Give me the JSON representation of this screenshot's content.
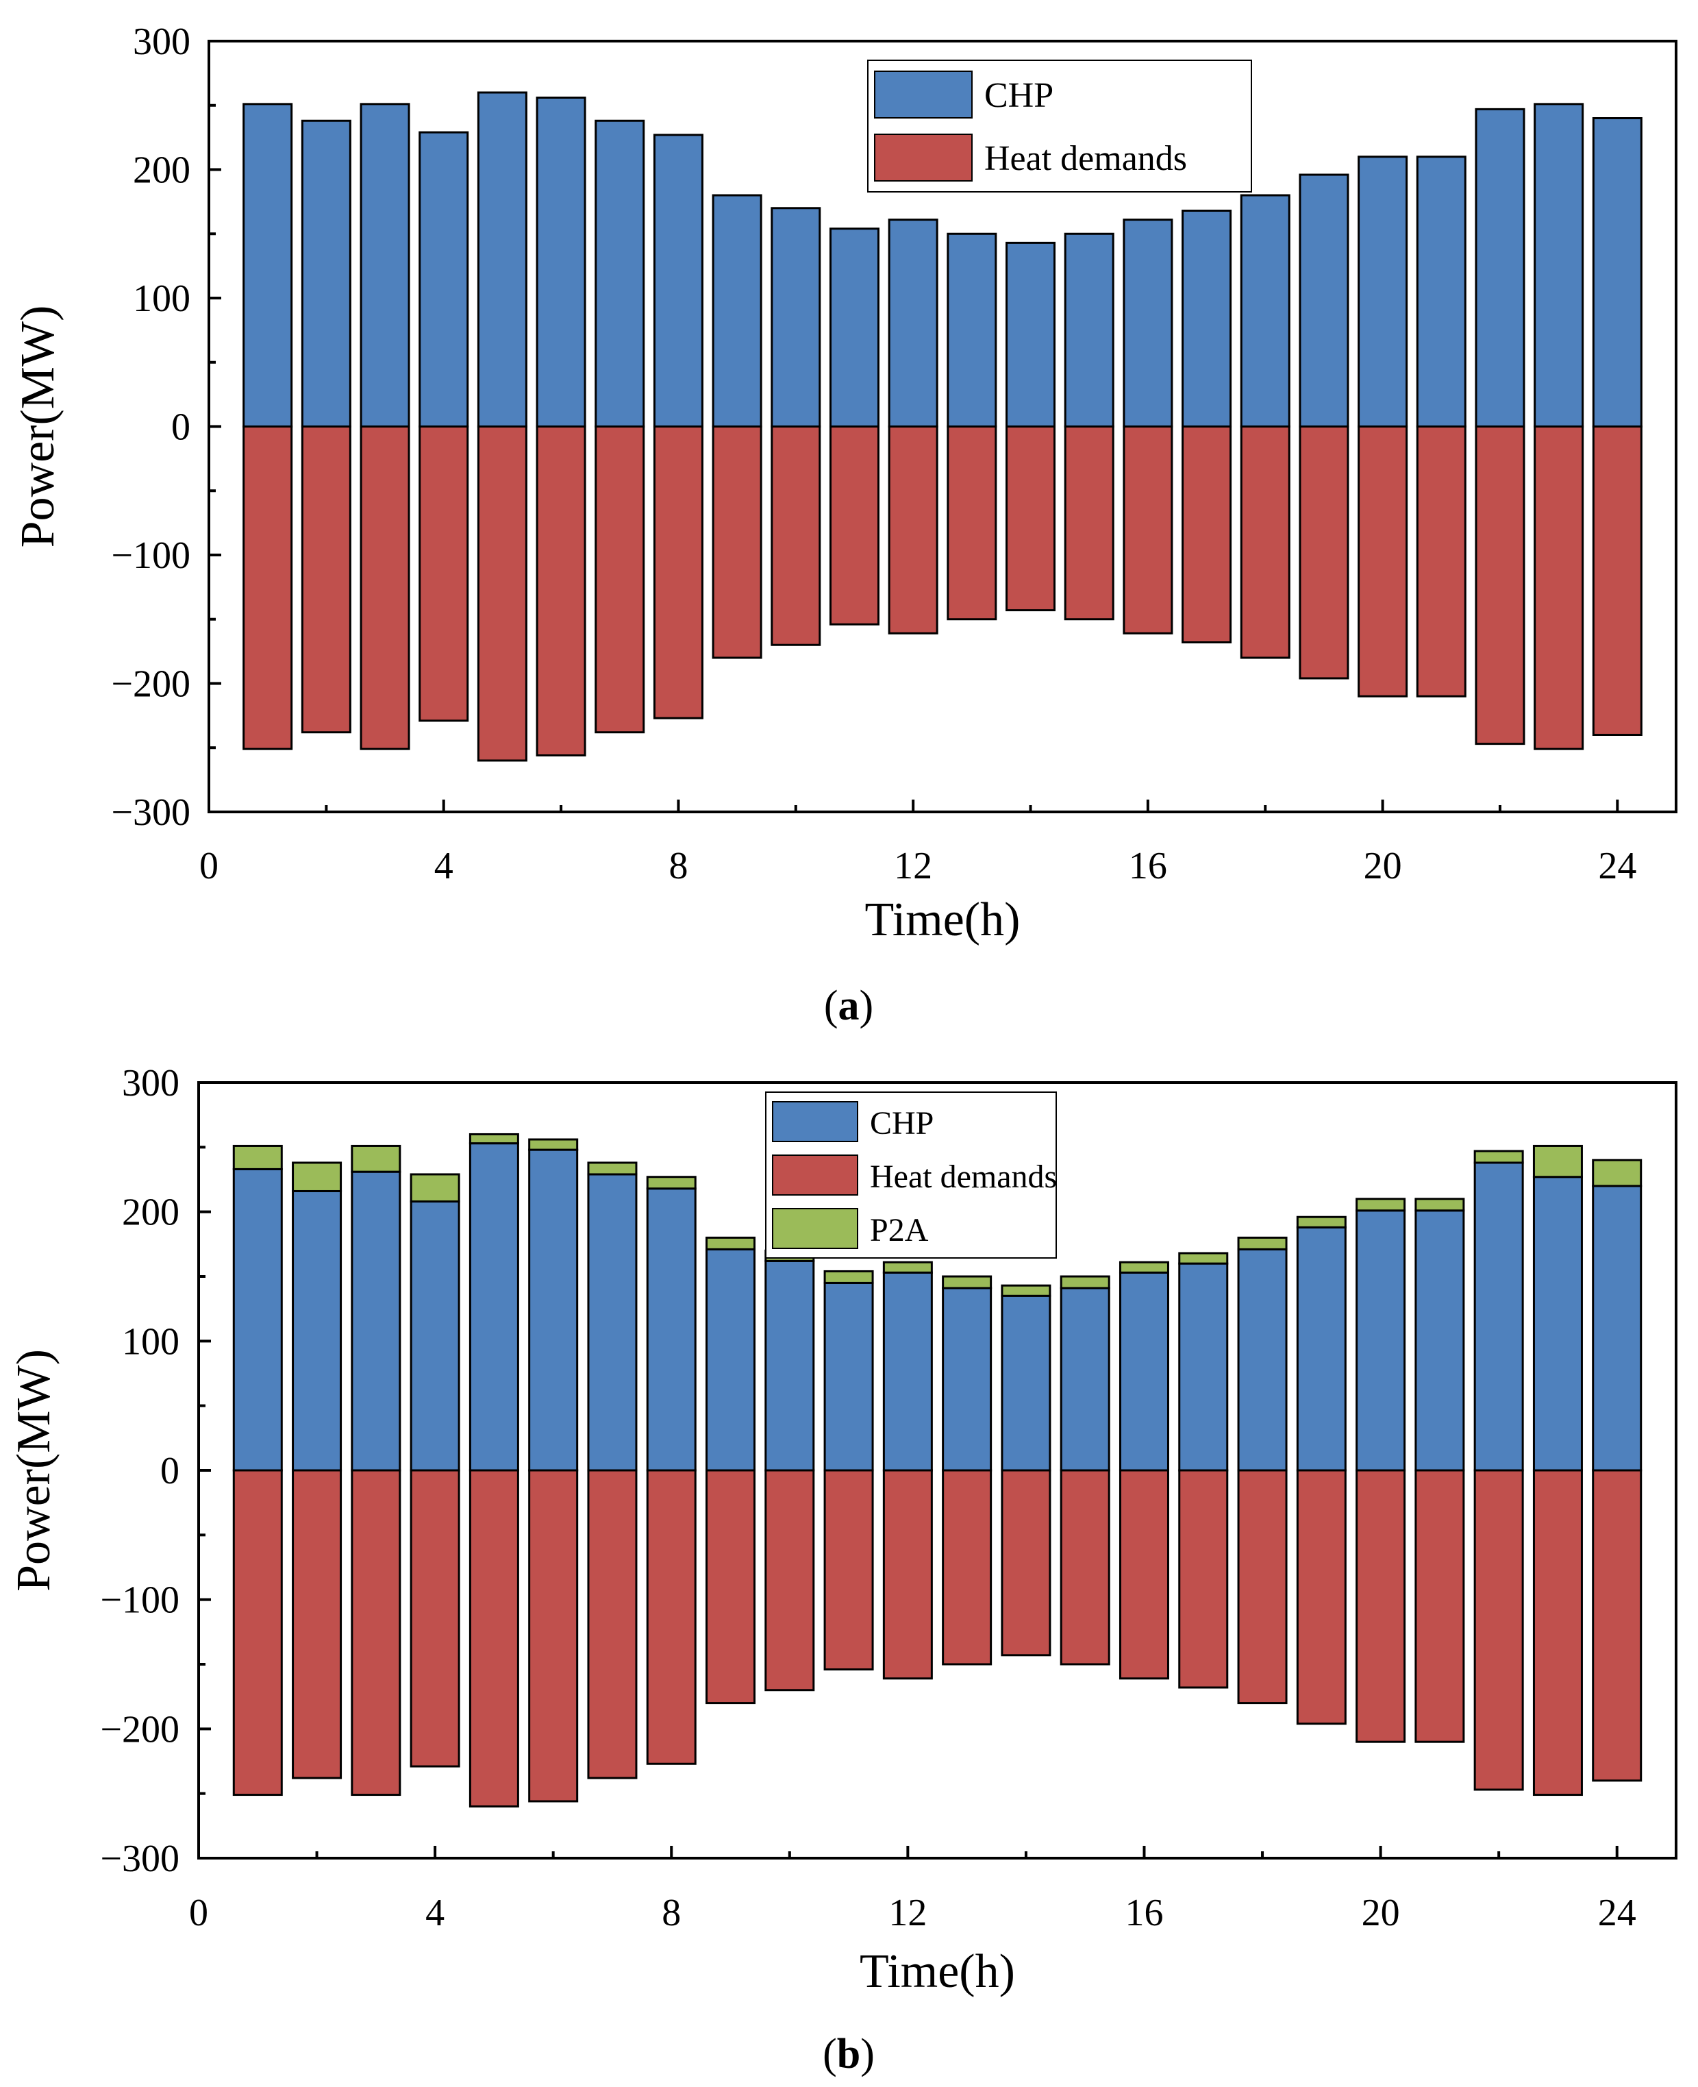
{
  "chart_data": [
    {
      "type": "bar",
      "panel_label": "a",
      "xlabel": "Time(h)",
      "ylabel": "Power(MW)",
      "xlim": [
        0,
        25
      ],
      "ylim": [
        -300,
        300
      ],
      "xticks": [
        0,
        4,
        8,
        12,
        16,
        20,
        24
      ],
      "yticks": [
        300,
        200,
        100,
        0,
        -100,
        -200,
        -300
      ],
      "ytick_labels": [
        "300",
        "200",
        "100",
        "0",
        "−100",
        "−200",
        "−300"
      ],
      "legend_position": "top-right",
      "x": [
        1,
        2,
        3,
        4,
        5,
        6,
        7,
        8,
        9,
        10,
        11,
        12,
        13,
        14,
        15,
        16,
        17,
        18,
        19,
        20,
        21,
        22,
        23,
        24
      ],
      "series": [
        {
          "name": "CHP",
          "color": "#4f81bd",
          "values": [
            251,
            238,
            251,
            229,
            260,
            256,
            238,
            227,
            180,
            170,
            154,
            161,
            150,
            143,
            150,
            161,
            168,
            180,
            196,
            210,
            210,
            247,
            251,
            240
          ]
        },
        {
          "name": "Heat demands",
          "color": "#c0504d",
          "values": [
            -251,
            -238,
            -251,
            -229,
            -260,
            -256,
            -238,
            -227,
            -180,
            -170,
            -154,
            -161,
            -150,
            -143,
            -150,
            -161,
            -168,
            -180,
            -196,
            -210,
            -210,
            -247,
            -251,
            -240
          ]
        }
      ]
    },
    {
      "type": "bar",
      "panel_label": "b",
      "xlabel": "Time(h)",
      "ylabel": "Power(MW)",
      "xlim": [
        0,
        25
      ],
      "ylim": [
        -300,
        300
      ],
      "xticks": [
        0,
        4,
        8,
        12,
        16,
        20,
        24
      ],
      "yticks": [
        300,
        200,
        100,
        0,
        -100,
        -200,
        -300
      ],
      "ytick_labels": [
        "300",
        "200",
        "100",
        "0",
        "−100",
        "−200",
        "−300"
      ],
      "legend_position": "top-center",
      "stacked": true,
      "x": [
        1,
        2,
        3,
        4,
        5,
        6,
        7,
        8,
        9,
        10,
        11,
        12,
        13,
        14,
        15,
        16,
        17,
        18,
        19,
        20,
        21,
        22,
        23,
        24
      ],
      "series": [
        {
          "name": "CHP",
          "color": "#4f81bd",
          "values": [
            233,
            216,
            231,
            208,
            253,
            248,
            229,
            218,
            171,
            162,
            145,
            153,
            141,
            135,
            141,
            153,
            160,
            171,
            188,
            201,
            201,
            238,
            227,
            220
          ]
        },
        {
          "name": "Heat demands",
          "color": "#c0504d",
          "values": [
            -251,
            -238,
            -251,
            -229,
            -260,
            -256,
            -238,
            -227,
            -180,
            -170,
            -154,
            -161,
            -150,
            -143,
            -150,
            -161,
            -168,
            -180,
            -196,
            -210,
            -210,
            -247,
            -251,
            -240
          ]
        },
        {
          "name": "P2A",
          "color": "#9bbb59",
          "values": [
            18,
            22,
            20,
            21,
            7,
            8,
            9,
            9,
            9,
            8,
            9,
            8,
            9,
            8,
            9,
            8,
            8,
            9,
            8,
            9,
            9,
            9,
            24,
            20
          ]
        }
      ]
    }
  ]
}
